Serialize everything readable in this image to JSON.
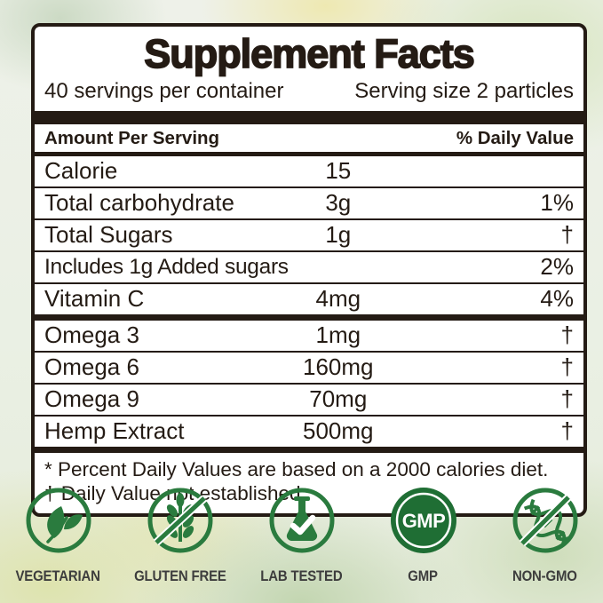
{
  "colors": {
    "ink": "#241b14",
    "green": "#2a7b3e",
    "gmp_green": "#1f6e34",
    "badge_label": "#3d3d3d"
  },
  "panel": {
    "title": "Supplement Facts",
    "servings_per_container": "40 servings per container",
    "serving_size": "Serving size 2 particles",
    "column_headers": {
      "left": "Amount Per Serving",
      "right": "% Daily Value"
    },
    "main_rows": [
      {
        "name": "Calorie",
        "amount": "15",
        "dv": ""
      },
      {
        "name": "Total carbohydrate",
        "amount": "3g",
        "dv": "1%"
      },
      {
        "name": "Total Sugars",
        "amount": "1g",
        "dv": "†"
      },
      {
        "name": "Includes 1g Added sugars",
        "amount": "",
        "dv": "2%"
      },
      {
        "name": "Vitamin C",
        "amount": "4mg",
        "dv": "4%"
      }
    ],
    "secondary_rows": [
      {
        "name": "Omega 3",
        "amount": "1mg",
        "dv": "†"
      },
      {
        "name": "Omega 6",
        "amount": "160mg",
        "dv": "†"
      },
      {
        "name": "Omega 9",
        "amount": "70mg",
        "dv": "†"
      },
      {
        "name": "Hemp Extract",
        "amount": "500mg",
        "dv": "†"
      }
    ],
    "footnotes": [
      "* Percent Daily Values are based on a 2000 calories diet.",
      "† Daily Value not established."
    ]
  },
  "badges": [
    {
      "label": "VEGETARIAN",
      "icon": "leaf-icon"
    },
    {
      "label": "GLUTEN FREE",
      "icon": "wheat-crossed-icon"
    },
    {
      "label": "LAB TESTED",
      "icon": "flask-check-icon"
    },
    {
      "label": "GMP",
      "icon": "gmp-seal-icon",
      "icon_text": "GMP"
    },
    {
      "label": "NON-GMO",
      "icon": "dna-crossed-icon"
    }
  ]
}
